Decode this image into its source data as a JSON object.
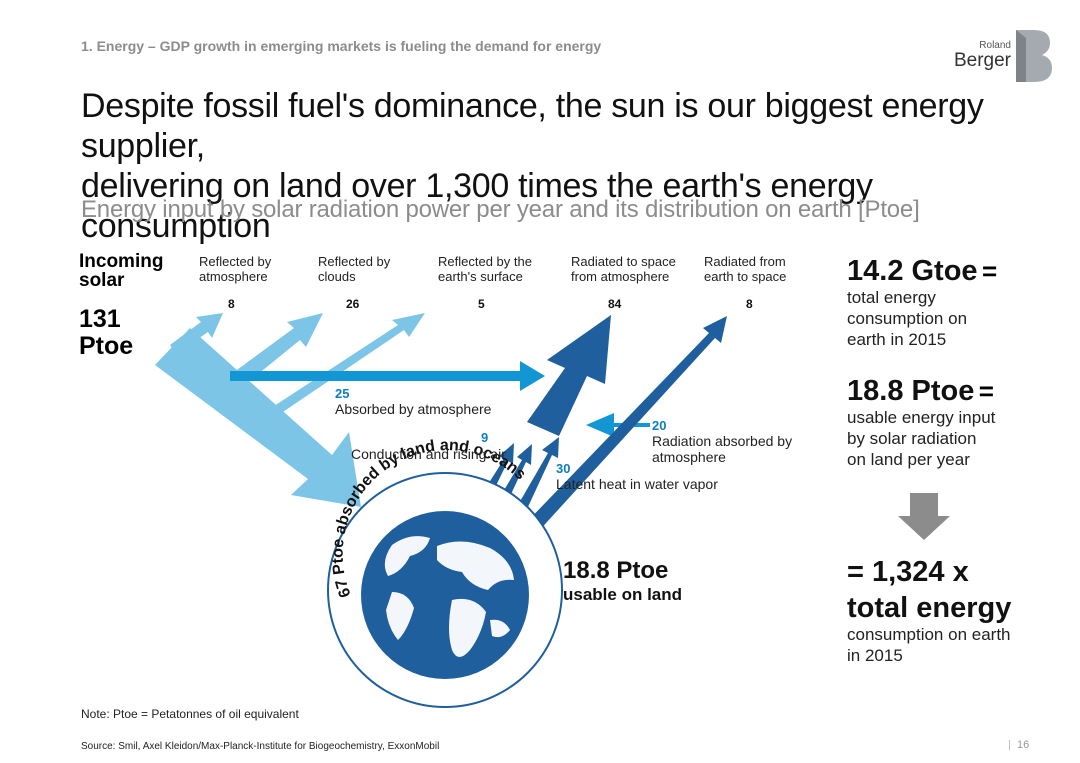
{
  "header": {
    "kicker": "1. Energy – GDP growth in emerging markets is fueling the demand for energy",
    "headline_line1": "Despite fossil fuel's dominance, the sun is our biggest energy supplier,",
    "headline_line2": "delivering on land over 1,300 times the earth's energy consumption",
    "subtitle": "Energy input by solar radiation power per year and its distribution on earth [Ptoe]"
  },
  "logo": {
    "line1": "Roland",
    "line2": "Berger",
    "color": "#9aa0a6"
  },
  "colors": {
    "light_blue": "#7cc5e6",
    "dark_blue": "#1f5f9e",
    "mid_blue": "#0d7fc0",
    "grey_arrow": "#8c8c8c"
  },
  "incoming": {
    "label_line1": "Incoming",
    "label_line2": "solar",
    "value_line1": "131",
    "value_line2": "Ptoe"
  },
  "columns": [
    {
      "line1": "Reflected by",
      "line2": "atmosphere",
      "value": "8"
    },
    {
      "line1": "Reflected by",
      "line2": "clouds",
      "value": "26"
    },
    {
      "line1": "Reflected by the",
      "line2": "earth's surface",
      "value": "5"
    },
    {
      "line1": "Radiated to space",
      "line2": "from atmosphere",
      "value": "84"
    },
    {
      "line1": "Radiated from",
      "line2": "earth to space",
      "value": "8"
    }
  ],
  "flows": {
    "absorbed_atm": {
      "value": "25",
      "label": "Absorbed by atmosphere"
    },
    "conduction": {
      "value": "9",
      "label": "Conduction and rising air"
    },
    "radiation_abs": {
      "value": "20",
      "label_line1": "Radiation absorbed by",
      "label_line2": "atmosphere"
    },
    "latent": {
      "value": "30",
      "label": "Latent heat in water vapor"
    }
  },
  "globe": {
    "arc_text": "67 Ptoe absorbed by land and oceans"
  },
  "usable_land": {
    "value": "18.8 Ptoe",
    "label": "usable on land"
  },
  "right_panel": {
    "stat1_value": "14.2 Gtoe",
    "stat1_eq": "=",
    "stat1_line1": "total energy",
    "stat1_line2": "consumption on",
    "stat1_line3": "earth in 2015",
    "stat2_value": "18.8 Ptoe",
    "stat2_eq": "=",
    "stat2_line1": "usable energy input",
    "stat2_line2": "by solar radiation",
    "stat2_line3": "on land per year",
    "result_line1": "= 1,324 x",
    "result_line2": "total energy",
    "result_line3": "consumption on earth",
    "result_line4": "in 2015"
  },
  "footer": {
    "note": "Note: Ptoe = Petatonnes of oil equivalent",
    "source": "Source: Smil, Axel Kleidon/Max-Planck-Institute for Biogeochemistry, ExxonMobil",
    "page": "16"
  }
}
